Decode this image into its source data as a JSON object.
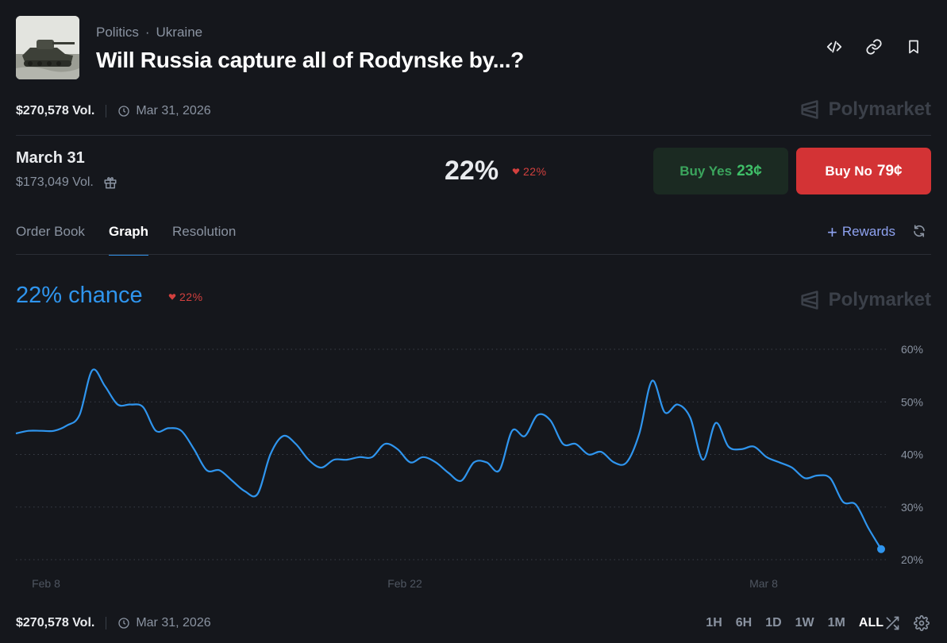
{
  "header": {
    "breadcrumb": [
      "Politics",
      "Ukraine"
    ],
    "breadcrumb_sep": "·",
    "title": "Will Russia capture all of Rodynske by...?",
    "thumbnail_icon": "tank-photo-icon",
    "actions": [
      "embed-icon",
      "link-icon",
      "bookmark-icon"
    ]
  },
  "market": {
    "volume": "$270,578 Vol.",
    "end_date": "Mar 31, 2026",
    "brand": "Polymarket"
  },
  "outcome": {
    "name": "March 31",
    "volume": "$173,049 Vol.",
    "probability": "22%",
    "change": "22%",
    "change_direction": "down",
    "buy_yes_label": "Buy Yes",
    "buy_yes_price": "23¢",
    "buy_no_label": "Buy No",
    "buy_no_price": "79¢"
  },
  "tabs": [
    {
      "label": "Order Book",
      "active": false
    },
    {
      "label": "Graph",
      "active": true
    },
    {
      "label": "Resolution",
      "active": false
    }
  ],
  "rewards_label": "Rewards",
  "chart_header": {
    "chance": "22% chance",
    "change": "22%"
  },
  "colors": {
    "line": "#2f95ee",
    "down": "#d2403e",
    "yes": "#3fbf68",
    "no": "#d33335"
  },
  "chart_data": {
    "type": "line",
    "x_ticks": [
      "Feb 8",
      "Feb 22",
      "Mar 8"
    ],
    "y_ticks": [
      "60%",
      "50%",
      "40%",
      "30%",
      "20%"
    ],
    "ylim": [
      20,
      60
    ],
    "y_axis_side": "right",
    "grid": true,
    "series": [
      {
        "values": [
          44,
          44.5,
          44.5,
          44.5,
          45.5,
          47.5,
          56,
          53,
          49.5,
          49.5,
          49,
          44.5,
          45,
          44.5,
          41,
          37,
          37,
          35,
          33,
          32.5,
          40,
          43.5,
          42,
          39,
          37.5,
          39,
          39,
          39.5,
          39.5,
          42,
          41,
          38.5,
          39.5,
          38.5,
          36.5,
          35,
          38.5,
          38.5,
          37,
          44.5,
          43.5,
          47.5,
          46.5,
          42,
          42,
          40,
          40.5,
          38.5,
          38.5,
          44,
          54,
          48,
          49.5,
          47,
          39,
          46,
          41.5,
          41,
          41.5,
          39.5,
          38.5,
          37.5,
          35.5,
          36,
          35.5,
          31,
          30.5,
          26,
          22
        ]
      }
    ],
    "last_point_marker": true
  },
  "footer": {
    "volume": "$270,578 Vol.",
    "end_date": "Mar 31, 2026",
    "ranges": [
      {
        "label": "1H",
        "active": false
      },
      {
        "label": "6H",
        "active": false
      },
      {
        "label": "1D",
        "active": false
      },
      {
        "label": "1W",
        "active": false
      },
      {
        "label": "1M",
        "active": false
      },
      {
        "label": "ALL",
        "active": true
      }
    ]
  }
}
